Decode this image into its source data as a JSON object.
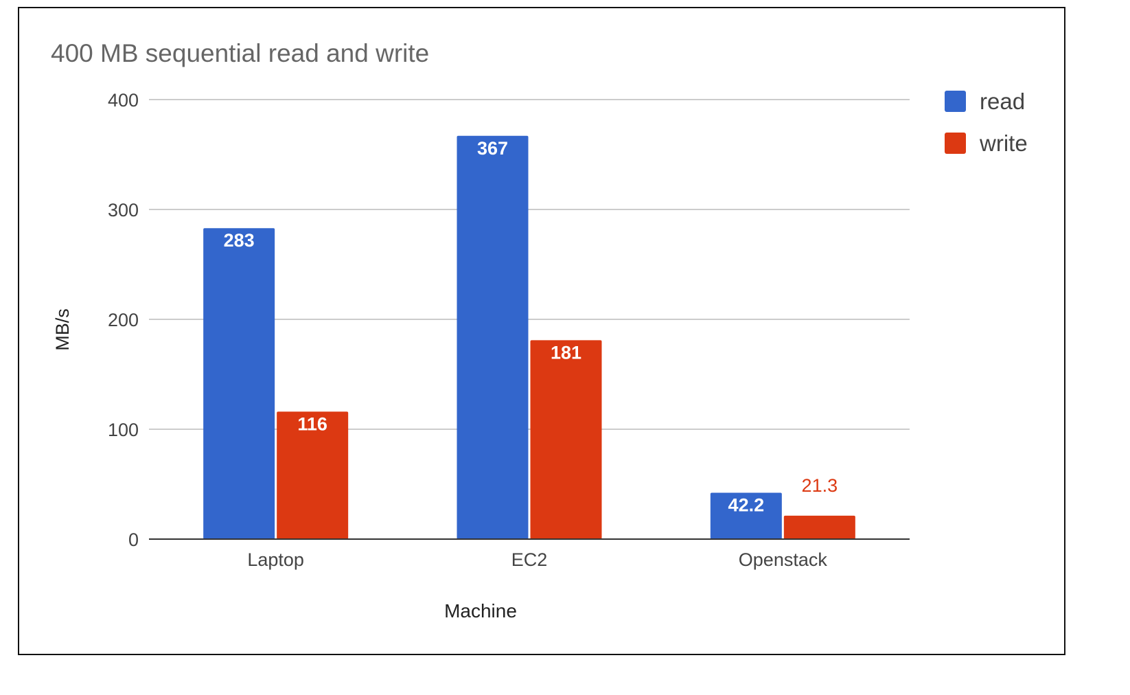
{
  "chart_data": {
    "type": "bar",
    "title": "400 MB sequential read and write",
    "xlabel": "Machine",
    "ylabel": "MB/s",
    "categories": [
      "Laptop",
      "EC2",
      "Openstack"
    ],
    "series": [
      {
        "name": "read",
        "values": [
          283,
          367,
          42.2
        ],
        "labels": [
          "283",
          "367",
          "42.2"
        ],
        "color": "#3366cc"
      },
      {
        "name": "write",
        "values": [
          116,
          181,
          21.3
        ],
        "labels": [
          "116",
          "181",
          "21.3"
        ],
        "color": "#dc3912"
      }
    ],
    "ylim": [
      0,
      400
    ],
    "yticks": [
      0,
      100,
      200,
      300,
      400
    ],
    "ytick_labels": [
      "0",
      "100",
      "200",
      "300",
      "400"
    ],
    "grid": true,
    "legend_position": "right"
  }
}
